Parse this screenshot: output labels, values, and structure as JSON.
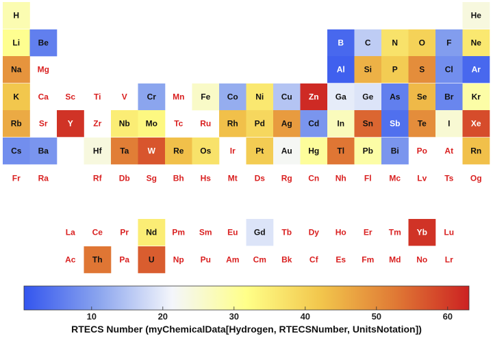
{
  "chart_data": {
    "type": "heatmap",
    "title": "",
    "colorbar": {
      "label": "RTECS Number (myChemicalData[Hydrogen, RTECSNumber, UnitsNotation])",
      "range": [
        0.5,
        63
      ],
      "ticks": [
        10,
        20,
        30,
        40,
        50,
        60
      ],
      "colors": [
        "#3355ee",
        "#8aa4ee",
        "#f4f6fb",
        "#ffff88",
        "#f2c64c",
        "#e07a35",
        "#cc2222"
      ]
    },
    "missing_label_color": "#d92020",
    "cells": [
      {
        "symbol": "H",
        "row": 1,
        "col": 1,
        "value": 28
      },
      {
        "symbol": "He",
        "row": 1,
        "col": 18,
        "value": 24
      },
      {
        "symbol": "Li",
        "row": 2,
        "col": 1,
        "value": 31
      },
      {
        "symbol": "Be",
        "row": 2,
        "col": 2,
        "value": 6
      },
      {
        "symbol": "B",
        "row": 2,
        "col": 13,
        "value": 3
      },
      {
        "symbol": "C",
        "row": 2,
        "col": 14,
        "value": 16
      },
      {
        "symbol": "N",
        "row": 2,
        "col": 15,
        "value": 37
      },
      {
        "symbol": "O",
        "row": 2,
        "col": 16,
        "value": 40
      },
      {
        "symbol": "F",
        "row": 2,
        "col": 17,
        "value": 10
      },
      {
        "symbol": "Ne",
        "row": 2,
        "col": 18,
        "value": 36
      },
      {
        "symbol": "Na",
        "row": 3,
        "col": 1,
        "value": 49
      },
      {
        "symbol": "Mg",
        "row": 3,
        "col": 2,
        "value": null
      },
      {
        "symbol": "Al",
        "row": 3,
        "col": 13,
        "value": 2
      },
      {
        "symbol": "Si",
        "row": 3,
        "col": 14,
        "value": 45
      },
      {
        "symbol": "P",
        "row": 3,
        "col": 15,
        "value": 41
      },
      {
        "symbol": "S",
        "row": 3,
        "col": 16,
        "value": 50
      },
      {
        "symbol": "Cl",
        "row": 3,
        "col": 17,
        "value": 8
      },
      {
        "symbol": "Ar",
        "row": 3,
        "col": 18,
        "value": 3
      },
      {
        "symbol": "K",
        "row": 4,
        "col": 1,
        "value": 42
      },
      {
        "symbol": "Ca",
        "row": 4,
        "col": 2,
        "value": null
      },
      {
        "symbol": "Sc",
        "row": 4,
        "col": 3,
        "value": null
      },
      {
        "symbol": "Ti",
        "row": 4,
        "col": 4,
        "value": null
      },
      {
        "symbol": "V",
        "row": 4,
        "col": 5,
        "value": null
      },
      {
        "symbol": "Cr",
        "row": 4,
        "col": 6,
        "value": 11
      },
      {
        "symbol": "Mn",
        "row": 4,
        "col": 7,
        "value": null
      },
      {
        "symbol": "Fe",
        "row": 4,
        "col": 8,
        "value": 26
      },
      {
        "symbol": "Co",
        "row": 4,
        "col": 9,
        "value": 12
      },
      {
        "symbol": "Ni",
        "row": 4,
        "col": 10,
        "value": 36
      },
      {
        "symbol": "Cu",
        "row": 4,
        "col": 11,
        "value": 15
      },
      {
        "symbol": "Zn",
        "row": 4,
        "col": 12,
        "value": 62
      },
      {
        "symbol": "Ga",
        "row": 4,
        "col": 13,
        "value": 20
      },
      {
        "symbol": "Ge",
        "row": 4,
        "col": 14,
        "value": 19
      },
      {
        "symbol": "As",
        "row": 4,
        "col": 15,
        "value": 6
      },
      {
        "symbol": "Se",
        "row": 4,
        "col": 16,
        "value": 44
      },
      {
        "symbol": "Br",
        "row": 4,
        "col": 17,
        "value": 7
      },
      {
        "symbol": "Kr",
        "row": 4,
        "col": 18,
        "value": 29
      },
      {
        "symbol": "Rb",
        "row": 5,
        "col": 1,
        "value": 46
      },
      {
        "symbol": "Sr",
        "row": 5,
        "col": 2,
        "value": null
      },
      {
        "symbol": "Y",
        "row": 5,
        "col": 3,
        "value": 61
      },
      {
        "symbol": "Zr",
        "row": 5,
        "col": 4,
        "value": null
      },
      {
        "symbol": "Nb",
        "row": 5,
        "col": 5,
        "value": 35
      },
      {
        "symbol": "Mo",
        "row": 5,
        "col": 6,
        "value": 33
      },
      {
        "symbol": "Tc",
        "row": 5,
        "col": 7,
        "value": null
      },
      {
        "symbol": "Ru",
        "row": 5,
        "col": 8,
        "value": null
      },
      {
        "symbol": "Rh",
        "row": 5,
        "col": 9,
        "value": 43
      },
      {
        "symbol": "Pd",
        "row": 5,
        "col": 10,
        "value": 39
      },
      {
        "symbol": "Ag",
        "row": 5,
        "col": 11,
        "value": 48
      },
      {
        "symbol": "Cd",
        "row": 5,
        "col": 12,
        "value": 9
      },
      {
        "symbol": "In",
        "row": 5,
        "col": 13,
        "value": 27
      },
      {
        "symbol": "Sn",
        "row": 5,
        "col": 14,
        "value": 55
      },
      {
        "symbol": "Sb",
        "row": 5,
        "col": 15,
        "value": 4
      },
      {
        "symbol": "Te",
        "row": 5,
        "col": 16,
        "value": 50
      },
      {
        "symbol": "I",
        "row": 5,
        "col": 17,
        "value": 25
      },
      {
        "symbol": "Xe",
        "row": 5,
        "col": 18,
        "value": 58
      },
      {
        "symbol": "Cs",
        "row": 6,
        "col": 1,
        "value": 8
      },
      {
        "symbol": "Ba",
        "row": 6,
        "col": 2,
        "value": 9
      },
      {
        "symbol": "Hf",
        "row": 6,
        "col": 4,
        "value": 24
      },
      {
        "symbol": "Ta",
        "row": 6,
        "col": 5,
        "value": 52
      },
      {
        "symbol": "W",
        "row": 6,
        "col": 6,
        "value": 57
      },
      {
        "symbol": "Re",
        "row": 6,
        "col": 7,
        "value": 43
      },
      {
        "symbol": "Os",
        "row": 6,
        "col": 8,
        "value": 37
      },
      {
        "symbol": "Ir",
        "row": 6,
        "col": 9,
        "value": null
      },
      {
        "symbol": "Pt",
        "row": 6,
        "col": 10,
        "value": 41
      },
      {
        "symbol": "Au",
        "row": 6,
        "col": 11,
        "value": 22
      },
      {
        "symbol": "Hg",
        "row": 6,
        "col": 12,
        "value": 30
      },
      {
        "symbol": "Tl",
        "row": 6,
        "col": 13,
        "value": 53
      },
      {
        "symbol": "Pb",
        "row": 6,
        "col": 14,
        "value": 29
      },
      {
        "symbol": "Bi",
        "row": 6,
        "col": 15,
        "value": 9
      },
      {
        "symbol": "Po",
        "row": 6,
        "col": 16,
        "value": null
      },
      {
        "symbol": "At",
        "row": 6,
        "col": 17,
        "value": null
      },
      {
        "symbol": "Rn",
        "row": 6,
        "col": 18,
        "value": 43
      },
      {
        "symbol": "Fr",
        "row": 7,
        "col": 1,
        "value": null
      },
      {
        "symbol": "Ra",
        "row": 7,
        "col": 2,
        "value": null
      },
      {
        "symbol": "Rf",
        "row": 7,
        "col": 4,
        "value": null
      },
      {
        "symbol": "Db",
        "row": 7,
        "col": 5,
        "value": null
      },
      {
        "symbol": "Sg",
        "row": 7,
        "col": 6,
        "value": null
      },
      {
        "symbol": "Bh",
        "row": 7,
        "col": 7,
        "value": null
      },
      {
        "symbol": "Hs",
        "row": 7,
        "col": 8,
        "value": null
      },
      {
        "symbol": "Mt",
        "row": 7,
        "col": 9,
        "value": null
      },
      {
        "symbol": "Ds",
        "row": 7,
        "col": 10,
        "value": null
      },
      {
        "symbol": "Rg",
        "row": 7,
        "col": 11,
        "value": null
      },
      {
        "symbol": "Cn",
        "row": 7,
        "col": 12,
        "value": null
      },
      {
        "symbol": "Nh",
        "row": 7,
        "col": 13,
        "value": null
      },
      {
        "symbol": "Fl",
        "row": 7,
        "col": 14,
        "value": null
      },
      {
        "symbol": "Mc",
        "row": 7,
        "col": 15,
        "value": null
      },
      {
        "symbol": "Lv",
        "row": 7,
        "col": 16,
        "value": null
      },
      {
        "symbol": "Ts",
        "row": 7,
        "col": 17,
        "value": null
      },
      {
        "symbol": "Og",
        "row": 7,
        "col": 18,
        "value": null
      },
      {
        "symbol": "La",
        "row": 9,
        "col": 3,
        "value": null
      },
      {
        "symbol": "Ce",
        "row": 9,
        "col": 4,
        "value": null
      },
      {
        "symbol": "Pr",
        "row": 9,
        "col": 5,
        "value": null
      },
      {
        "symbol": "Nd",
        "row": 9,
        "col": 6,
        "value": 35
      },
      {
        "symbol": "Pm",
        "row": 9,
        "col": 7,
        "value": null
      },
      {
        "symbol": "Sm",
        "row": 9,
        "col": 8,
        "value": null
      },
      {
        "symbol": "Eu",
        "row": 9,
        "col": 9,
        "value": null
      },
      {
        "symbol": "Gd",
        "row": 9,
        "col": 10,
        "value": 19
      },
      {
        "symbol": "Tb",
        "row": 9,
        "col": 11,
        "value": null
      },
      {
        "symbol": "Dy",
        "row": 9,
        "col": 12,
        "value": null
      },
      {
        "symbol": "Ho",
        "row": 9,
        "col": 13,
        "value": null
      },
      {
        "symbol": "Er",
        "row": 9,
        "col": 14,
        "value": null
      },
      {
        "symbol": "Tm",
        "row": 9,
        "col": 15,
        "value": null
      },
      {
        "symbol": "Yb",
        "row": 9,
        "col": 16,
        "value": 61
      },
      {
        "symbol": "Lu",
        "row": 9,
        "col": 17,
        "value": null
      },
      {
        "symbol": "Ac",
        "row": 10,
        "col": 3,
        "value": null
      },
      {
        "symbol": "Th",
        "row": 10,
        "col": 4,
        "value": 53
      },
      {
        "symbol": "Pa",
        "row": 10,
        "col": 5,
        "value": null
      },
      {
        "symbol": "U",
        "row": 10,
        "col": 6,
        "value": 56
      },
      {
        "symbol": "Np",
        "row": 10,
        "col": 7,
        "value": null
      },
      {
        "symbol": "Pu",
        "row": 10,
        "col": 8,
        "value": null
      },
      {
        "symbol": "Am",
        "row": 10,
        "col": 9,
        "value": null
      },
      {
        "symbol": "Cm",
        "row": 10,
        "col": 10,
        "value": null
      },
      {
        "symbol": "Bk",
        "row": 10,
        "col": 11,
        "value": null
      },
      {
        "symbol": "Cf",
        "row": 10,
        "col": 12,
        "value": null
      },
      {
        "symbol": "Es",
        "row": 10,
        "col": 13,
        "value": null
      },
      {
        "symbol": "Fm",
        "row": 10,
        "col": 14,
        "value": null
      },
      {
        "symbol": "Md",
        "row": 10,
        "col": 15,
        "value": null
      },
      {
        "symbol": "No",
        "row": 10,
        "col": 16,
        "value": null
      },
      {
        "symbol": "Lr",
        "row": 10,
        "col": 17,
        "value": null
      }
    ]
  }
}
